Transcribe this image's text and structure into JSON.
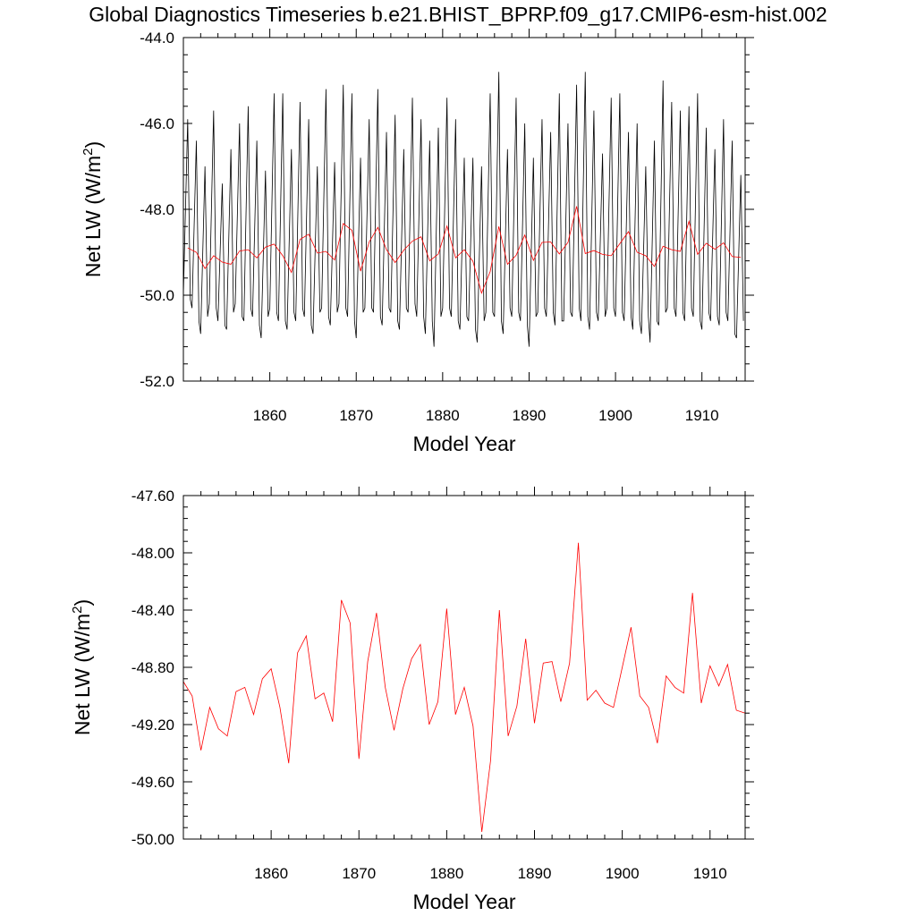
{
  "title": "Global Diagnostics Timeseries b.e21.BHIST_BPRP.f09_g17.CMIP6-esm-hist.002",
  "colors": {
    "monthly": "#000000",
    "annual": "#ff0000"
  },
  "chart_data": [
    {
      "type": "line",
      "xlabel": "Model Year",
      "ylabel": "Net LW (W/m",
      "ylabel_sup": "2",
      "ylabel_close": ")",
      "xlim": [
        1850,
        1915
      ],
      "ylim": [
        -52.0,
        -44.0
      ],
      "xticks": [
        1860,
        1870,
        1880,
        1890,
        1900,
        1910
      ],
      "xtick_labels": [
        "1860",
        "1870",
        "1880",
        "1890",
        "1900",
        "1910"
      ],
      "yticks": [
        -52.0,
        -50.0,
        -48.0,
        -46.0,
        -44.0
      ],
      "ytick_labels": [
        "-52.0",
        "-50.0",
        "-48.0",
        "-46.0",
        "-44.0"
      ],
      "grid": false,
      "series": [
        {
          "color": "#000000",
          "resolution": "monthly",
          "x": [
            1850.0,
            1850.5,
            1850.8,
            1851.0,
            1851.5,
            1851.8,
            1852.0,
            1852.5,
            1852.8,
            1853.0,
            1853.5,
            1853.8,
            1854.0,
            1854.5,
            1854.8,
            1855.0,
            1855.5,
            1855.8,
            1856.0,
            1856.5,
            1856.8,
            1857.0,
            1857.5,
            1857.8,
            1858.0,
            1858.5,
            1858.8,
            1859.0,
            1859.5,
            1859.8,
            1860.0,
            1860.5,
            1860.8,
            1861.0,
            1861.5,
            1861.8,
            1862.0,
            1862.5,
            1862.8,
            1863.0,
            1863.5,
            1863.8,
            1864.0,
            1864.5,
            1864.8,
            1865.0,
            1865.5,
            1865.8,
            1866.0,
            1866.5,
            1866.8,
            1867.0,
            1867.5,
            1867.8,
            1868.0,
            1868.5,
            1868.8,
            1869.0,
            1869.5,
            1869.8,
            1870.0,
            1870.5,
            1870.8,
            1871.0,
            1871.5,
            1871.8,
            1872.0,
            1872.5,
            1872.8,
            1873.0,
            1873.5,
            1873.8,
            1874.0,
            1874.5,
            1874.8,
            1875.0,
            1875.5,
            1875.8,
            1876.0,
            1876.5,
            1876.8,
            1877.0,
            1877.5,
            1877.8,
            1878.0,
            1878.5,
            1878.8,
            1879.0,
            1879.5,
            1879.8,
            1880.0,
            1880.5,
            1880.8,
            1881.0,
            1881.5,
            1881.8,
            1882.0,
            1882.5,
            1882.8,
            1883.0,
            1883.5,
            1883.8,
            1884.0,
            1884.5,
            1884.8,
            1885.0,
            1885.5,
            1885.8,
            1886.0,
            1886.5,
            1886.8,
            1887.0,
            1887.5,
            1887.8,
            1888.0,
            1888.5,
            1888.8,
            1889.0,
            1889.5,
            1889.8,
            1890.0,
            1890.5,
            1890.8,
            1891.0,
            1891.5,
            1891.8,
            1892.0,
            1892.5,
            1892.8,
            1893.0,
            1893.5,
            1893.8,
            1894.0,
            1894.5,
            1894.8,
            1895.0,
            1895.5,
            1895.8,
            1896.0,
            1896.5,
            1896.8,
            1897.0,
            1897.5,
            1897.8,
            1898.0,
            1898.5,
            1898.8,
            1899.0,
            1899.5,
            1899.8,
            1900.0,
            1900.5,
            1900.8,
            1901.0,
            1901.5,
            1901.8,
            1902.0,
            1902.5,
            1902.8,
            1903.0,
            1903.5,
            1903.8,
            1904.0,
            1904.5,
            1904.8,
            1905.0,
            1905.5,
            1905.8,
            1906.0,
            1906.5,
            1906.8,
            1907.0,
            1907.5,
            1907.8,
            1908.0,
            1908.5,
            1908.8,
            1909.0,
            1909.5,
            1909.8,
            1910.0,
            1910.5,
            1910.8,
            1911.0,
            1911.5,
            1911.8,
            1912.0,
            1912.5,
            1912.8,
            1913.0,
            1913.5,
            1913.8,
            1914.0,
            1914.5,
            1914.8
          ],
          "values": [
            -50.0,
            -45.9,
            -50.1,
            -50.3,
            -46.4,
            -50.6,
            -50.9,
            -47.0,
            -50.5,
            -50.2,
            -45.7,
            -50.3,
            -50.6,
            -47.4,
            -50.7,
            -50.8,
            -46.6,
            -50.4,
            -50.2,
            -46.0,
            -50.5,
            -50.6,
            -45.6,
            -50.3,
            -50.5,
            -46.4,
            -50.7,
            -51.0,
            -47.1,
            -50.5,
            -50.3,
            -45.3,
            -50.4,
            -50.6,
            -45.3,
            -50.6,
            -50.8,
            -46.6,
            -50.4,
            -50.6,
            -45.5,
            -50.3,
            -50.5,
            -45.9,
            -50.7,
            -50.9,
            -47.0,
            -50.4,
            -50.3,
            -45.2,
            -50.5,
            -50.7,
            -46.9,
            -50.4,
            -50.2,
            -45.1,
            -50.3,
            -50.5,
            -45.3,
            -50.6,
            -51.0,
            -46.8,
            -50.4,
            -50.3,
            -45.9,
            -50.3,
            -50.4,
            -45.2,
            -50.5,
            -50.7,
            -46.2,
            -50.3,
            -50.4,
            -45.8,
            -50.6,
            -50.8,
            -46.6,
            -50.3,
            -50.4,
            -45.4,
            -50.2,
            -50.5,
            -45.9,
            -50.5,
            -50.9,
            -46.4,
            -50.6,
            -51.2,
            -46.1,
            -50.5,
            -50.3,
            -45.4,
            -50.3,
            -50.5,
            -45.9,
            -50.6,
            -50.8,
            -46.8,
            -50.5,
            -50.6,
            -46.8,
            -50.8,
            -51.1,
            -47.0,
            -50.6,
            -50.4,
            -45.3,
            -50.4,
            -50.5,
            -44.8,
            -50.6,
            -50.9,
            -46.6,
            -50.3,
            -50.5,
            -45.4,
            -50.4,
            -50.6,
            -46.0,
            -50.7,
            -51.2,
            -46.8,
            -50.5,
            -50.4,
            -45.9,
            -50.3,
            -50.5,
            -46.2,
            -50.4,
            -50.7,
            -45.3,
            -50.6,
            -50.6,
            -46.0,
            -50.4,
            -50.5,
            -45.1,
            -50.3,
            -50.6,
            -44.8,
            -50.5,
            -50.8,
            -45.7,
            -50.4,
            -50.6,
            -46.7,
            -50.5,
            -50.3,
            -45.4,
            -50.3,
            -50.5,
            -45.3,
            -50.4,
            -50.6,
            -46.2,
            -50.5,
            -50.8,
            -46.0,
            -50.6,
            -50.9,
            -47.0,
            -50.5,
            -51.1,
            -46.4,
            -50.6,
            -50.7,
            -45.0,
            -50.4,
            -50.3,
            -45.5,
            -50.3,
            -50.5,
            -45.7,
            -50.4,
            -50.6,
            -45.6,
            -50.3,
            -50.5,
            -45.3,
            -50.6,
            -50.8,
            -46.1,
            -50.4,
            -50.6,
            -46.6,
            -50.5,
            -50.7,
            -45.9,
            -50.4,
            -50.6,
            -46.4,
            -50.9,
            -51.0,
            -47.2,
            -50.6
          ]
        },
        {
          "color": "#ff0000",
          "resolution": "annual",
          "x": [
            1850.5,
            1851.5,
            1852.5,
            1853.5,
            1854.5,
            1855.5,
            1856.5,
            1857.5,
            1858.5,
            1859.5,
            1860.5,
            1861.5,
            1862.5,
            1863.5,
            1864.5,
            1865.5,
            1866.5,
            1867.5,
            1868.5,
            1869.5,
            1870.5,
            1871.5,
            1872.5,
            1873.5,
            1874.5,
            1875.5,
            1876.5,
            1877.5,
            1878.5,
            1879.5,
            1880.5,
            1881.5,
            1882.5,
            1883.5,
            1884.5,
            1885.5,
            1886.5,
            1887.5,
            1888.5,
            1889.5,
            1890.5,
            1891.5,
            1892.5,
            1893.5,
            1894.5,
            1895.5,
            1896.5,
            1897.5,
            1898.5,
            1899.5,
            1900.5,
            1901.5,
            1902.5,
            1903.5,
            1904.5,
            1905.5,
            1906.5,
            1907.5,
            1908.5,
            1909.5,
            1910.5,
            1911.5,
            1912.5,
            1913.5,
            1914.5
          ],
          "values": [
            -48.9,
            -49.0,
            -49.38,
            -49.08,
            -49.23,
            -49.28,
            -48.97,
            -48.94,
            -49.13,
            -48.88,
            -48.81,
            -49.08,
            -49.47,
            -48.7,
            -48.58,
            -49.02,
            -48.98,
            -49.18,
            -48.33,
            -48.49,
            -49.44,
            -48.76,
            -48.42,
            -48.94,
            -49.24,
            -48.95,
            -48.74,
            -48.64,
            -49.2,
            -49.04,
            -48.39,
            -49.13,
            -48.94,
            -49.21,
            -49.95,
            -49.45,
            -48.4,
            -49.28,
            -49.07,
            -48.6,
            -49.19,
            -48.77,
            -48.76,
            -49.04,
            -48.77,
            -47.93,
            -49.03,
            -48.96,
            -49.05,
            -49.08,
            -48.8,
            -48.52,
            -49.0,
            -49.08,
            -49.33,
            -48.86,
            -48.94,
            -48.98,
            -48.28,
            -49.05,
            -48.79,
            -48.93,
            -48.78,
            -49.1,
            -49.12
          ]
        }
      ]
    },
    {
      "type": "line",
      "xlabel": "Model Year",
      "ylabel": "Net LW (W/m",
      "ylabel_sup": "2",
      "ylabel_close": ")",
      "xlim": [
        1850,
        1914
      ],
      "ylim": [
        -50.0,
        -47.6
      ],
      "xticks": [
        1860,
        1870,
        1880,
        1890,
        1900,
        1910
      ],
      "xtick_labels": [
        "1860",
        "1870",
        "1880",
        "1890",
        "1900",
        "1910"
      ],
      "yticks": [
        -50.0,
        -49.6,
        -49.2,
        -48.8,
        -48.4,
        -48.0,
        -47.6
      ],
      "ytick_labels": [
        "-50.00",
        "-49.60",
        "-49.20",
        "-48.80",
        "-48.40",
        "-48.00",
        "-47.60"
      ],
      "grid": false,
      "series": [
        {
          "color": "#ff0000",
          "resolution": "annual",
          "x": [
            1850.0,
            1851.0,
            1852.0,
            1853.0,
            1854.0,
            1855.0,
            1856.0,
            1857.0,
            1858.0,
            1859.0,
            1860.0,
            1861.0,
            1862.0,
            1863.0,
            1864.0,
            1865.0,
            1866.0,
            1867.0,
            1868.0,
            1869.0,
            1870.0,
            1871.0,
            1872.0,
            1873.0,
            1874.0,
            1875.0,
            1876.0,
            1877.0,
            1878.0,
            1879.0,
            1880.0,
            1881.0,
            1882.0,
            1883.0,
            1884.0,
            1885.0,
            1886.0,
            1887.0,
            1888.0,
            1889.0,
            1890.0,
            1891.0,
            1892.0,
            1893.0,
            1894.0,
            1895.0,
            1896.0,
            1897.0,
            1898.0,
            1899.0,
            1900.0,
            1901.0,
            1902.0,
            1903.0,
            1904.0,
            1905.0,
            1906.0,
            1907.0,
            1908.0,
            1909.0,
            1910.0,
            1911.0,
            1912.0,
            1913.0,
            1914.0
          ],
          "values": [
            -48.9,
            -49.0,
            -49.38,
            -49.08,
            -49.23,
            -49.28,
            -48.97,
            -48.94,
            -49.13,
            -48.88,
            -48.81,
            -49.08,
            -49.47,
            -48.7,
            -48.58,
            -49.02,
            -48.98,
            -49.18,
            -48.33,
            -48.49,
            -49.44,
            -48.76,
            -48.42,
            -48.94,
            -49.24,
            -48.95,
            -48.74,
            -48.64,
            -49.2,
            -49.04,
            -48.39,
            -49.13,
            -48.94,
            -49.21,
            -49.95,
            -49.45,
            -48.4,
            -49.28,
            -49.07,
            -48.6,
            -49.19,
            -48.77,
            -48.76,
            -49.04,
            -48.77,
            -47.93,
            -49.03,
            -48.96,
            -49.05,
            -49.08,
            -48.8,
            -48.52,
            -49.0,
            -49.08,
            -49.33,
            -48.86,
            -48.94,
            -48.98,
            -48.28,
            -49.05,
            -48.79,
            -48.93,
            -48.78,
            -49.1,
            -49.12
          ]
        }
      ]
    }
  ]
}
